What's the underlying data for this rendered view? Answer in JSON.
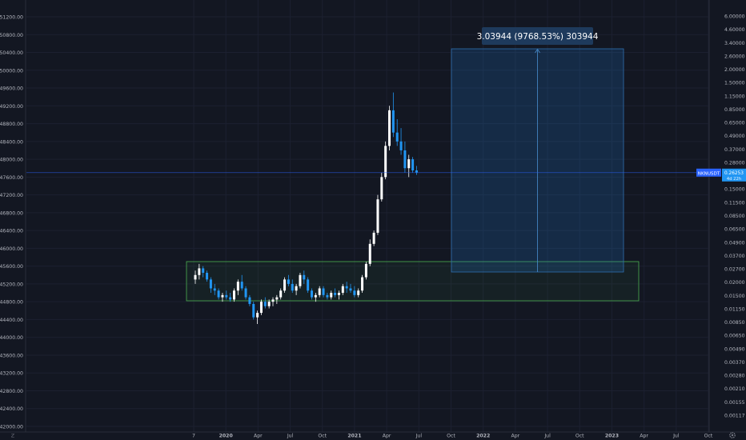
{
  "chart_data": {
    "type": "candlestick",
    "title": "",
    "left_axis": {
      "ticks": [
        "51200.00",
        "50800.00",
        "50400.00",
        "50000.00",
        "49600.00",
        "49200.00",
        "48800.00",
        "48400.00",
        "48000.00",
        "47600.00",
        "47200.00",
        "46800.00",
        "46400.00",
        "46000.00",
        "45600.00",
        "45200.00",
        "44800.00",
        "44400.00",
        "44000.00",
        "43600.00",
        "43200.00",
        "42800.00",
        "42400.00",
        "42000.00"
      ],
      "ylim": [
        42000,
        51200
      ]
    },
    "right_axis": {
      "scale": "log",
      "ticks": [
        "6.00000",
        "4.60000",
        "3.40000",
        "2.60000",
        "2.00000",
        "1.50000",
        "1.15000",
        "0.85000",
        "0.65000",
        "0.49000",
        "0.37000",
        "0.28000",
        "0.20000",
        "0.15000",
        "0.11500",
        "0.08500",
        "0.06500",
        "0.04900",
        "0.03700",
        "0.02700",
        "0.02000",
        "0.01500",
        "0.01150",
        "0.00850",
        "0.00650",
        "0.00490",
        "0.00370",
        "0.00280",
        "0.00210",
        "0.00155",
        "0.00117"
      ]
    },
    "x_axis": {
      "ticks": [
        {
          "label": "7",
          "bold": false
        },
        {
          "label": "2020",
          "bold": true
        },
        {
          "label": "Apr",
          "bold": false
        },
        {
          "label": "Jul",
          "bold": false
        },
        {
          "label": "Oct",
          "bold": false
        },
        {
          "label": "2021",
          "bold": true
        },
        {
          "label": "Apr",
          "bold": false
        },
        {
          "label": "Jul",
          "bold": false
        },
        {
          "label": "Oct",
          "bold": false
        },
        {
          "label": "2022",
          "bold": true
        },
        {
          "label": "Apr",
          "bold": false
        },
        {
          "label": "Jul",
          "bold": false
        },
        {
          "label": "Oct",
          "bold": false
        },
        {
          "label": "2023",
          "bold": true
        },
        {
          "label": "Apr",
          "bold": false
        },
        {
          "label": "Jul",
          "bold": false
        },
        {
          "label": "Oct",
          "bold": false
        }
      ]
    },
    "symbol_badge": "NKNUSDT",
    "last_price": "0.26253",
    "countdown": "4d 22h",
    "measure_label": "3.03944 (9768.53%) 303944",
    "corner_left": "Z",
    "corner_right": "gear-icon",
    "colors": {
      "background": "#131722",
      "up_candle": "#ffffff",
      "down_candle": "#2196f3",
      "measure_box": "#1e3a5c",
      "demand_zone_border": "#4caf50",
      "price_line": "#2962ff"
    },
    "candles": [
      [
        45300,
        45500,
        45200,
        45400
      ],
      [
        45400,
        45650,
        45300,
        45550
      ],
      [
        45550,
        45600,
        45350,
        45450
      ],
      [
        45450,
        45500,
        45250,
        45300
      ],
      [
        45300,
        45350,
        45000,
        45100
      ],
      [
        45100,
        45200,
        44950,
        45050
      ],
      [
        45050,
        45100,
        44850,
        44900
      ],
      [
        44900,
        45000,
        44800,
        44950
      ],
      [
        44950,
        45050,
        44850,
        44900
      ],
      [
        44900,
        45000,
        44800,
        44850
      ],
      [
        44850,
        45100,
        44800,
        45050
      ],
      [
        45050,
        45300,
        44950,
        45250
      ],
      [
        45250,
        45400,
        45050,
        45100
      ],
      [
        45100,
        45150,
        44850,
        44900
      ],
      [
        44900,
        44950,
        44700,
        44750
      ],
      [
        44750,
        44800,
        44400,
        44450
      ],
      [
        44450,
        44600,
        44300,
        44550
      ],
      [
        44550,
        44850,
        44500,
        44800
      ],
      [
        44800,
        44900,
        44650,
        44700
      ],
      [
        44700,
        44850,
        44650,
        44800
      ],
      [
        44800,
        44900,
        44700,
        44850
      ],
      [
        44850,
        44950,
        44750,
        44900
      ],
      [
        44900,
        45100,
        44850,
        45050
      ],
      [
        45050,
        45350,
        45000,
        45300
      ],
      [
        45300,
        45400,
        45150,
        45200
      ],
      [
        45200,
        45300,
        45000,
        45050
      ],
      [
        45050,
        45200,
        44950,
        45150
      ],
      [
        45150,
        45450,
        45100,
        45400
      ],
      [
        45400,
        45500,
        45200,
        45300
      ],
      [
        45300,
        45350,
        45000,
        45050
      ],
      [
        45050,
        45100,
        44850,
        44900
      ],
      [
        44900,
        45000,
        44800,
        44950
      ],
      [
        44950,
        45150,
        44900,
        45100
      ],
      [
        45100,
        45150,
        44900,
        44950
      ],
      [
        44950,
        45000,
        44850,
        44900
      ],
      [
        44900,
        45050,
        44850,
        45000
      ],
      [
        45000,
        45100,
        44900,
        44950
      ],
      [
        44950,
        45050,
        44850,
        45000
      ],
      [
        45000,
        45200,
        44950,
        45150
      ],
      [
        45150,
        45250,
        45000,
        45100
      ],
      [
        45100,
        45200,
        45000,
        45050
      ],
      [
        45050,
        45150,
        44900,
        44950
      ],
      [
        44950,
        45100,
        44900,
        45050
      ],
      [
        45050,
        45400,
        45000,
        45350
      ],
      [
        45350,
        45700,
        45300,
        45650
      ],
      [
        45650,
        46200,
        45600,
        46100
      ],
      [
        46100,
        46400,
        46050,
        46350
      ],
      [
        46350,
        47200,
        46300,
        47100
      ],
      [
        47100,
        47700,
        47050,
        47600
      ],
      [
        47600,
        48400,
        47550,
        48300
      ],
      [
        48300,
        49200,
        48200,
        49100
      ],
      [
        49100,
        49500,
        48500,
        48600
      ],
      [
        48600,
        48900,
        48300,
        48400
      ],
      [
        48400,
        48700,
        48100,
        48200
      ],
      [
        48200,
        48400,
        47700,
        47800
      ],
      [
        47800,
        48100,
        47600,
        48000
      ],
      [
        48000,
        48050,
        47700,
        47750
      ],
      [
        47750,
        47850,
        47650,
        47700
      ]
    ]
  }
}
